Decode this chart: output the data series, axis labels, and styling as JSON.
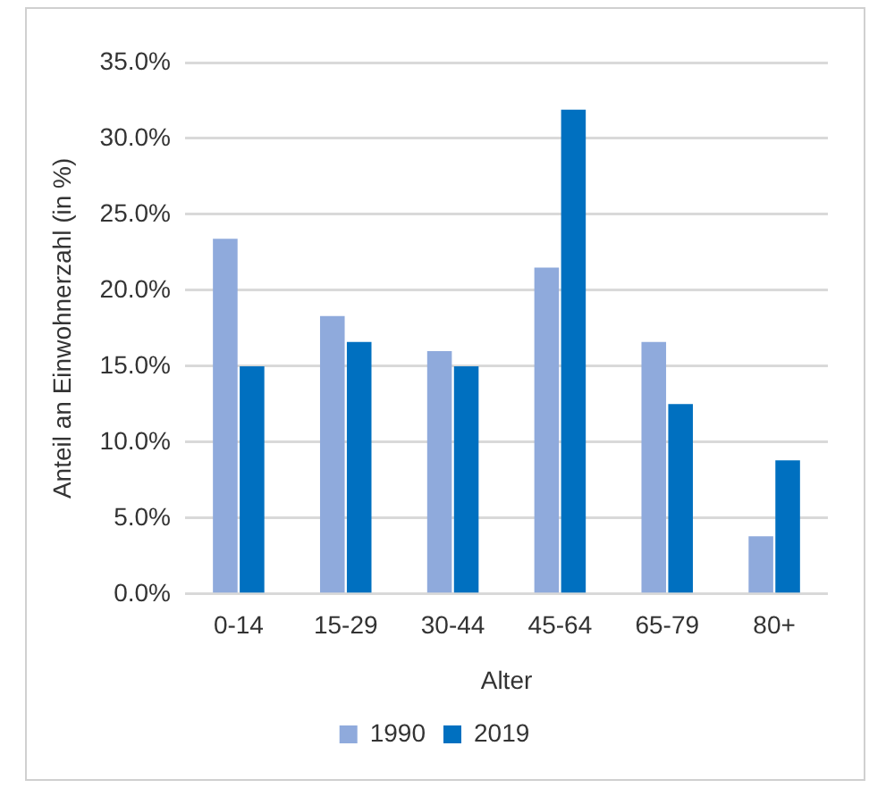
{
  "chart_data": {
    "type": "bar",
    "xlabel": "Alter",
    "ylabel": "Anteil an Einwohnerzahl (in %)",
    "categories": [
      "0-14",
      "15-29",
      "30-44",
      "45-64",
      "65-79",
      "80+"
    ],
    "series": [
      {
        "name": "1990",
        "color": "#8faadc",
        "values": [
          23.4,
          18.3,
          16.0,
          21.5,
          16.6,
          3.8
        ]
      },
      {
        "name": "2019",
        "color": "#0070c0",
        "values": [
          15.0,
          16.6,
          15.0,
          31.9,
          12.5,
          8.8
        ]
      }
    ],
    "ylim": [
      0,
      35
    ],
    "yticks": [
      {
        "value": 0,
        "label": "0.0%"
      },
      {
        "value": 5,
        "label": "5.0%"
      },
      {
        "value": 10,
        "label": "10.0%"
      },
      {
        "value": 15,
        "label": "15.0%"
      },
      {
        "value": 20,
        "label": "20.0%"
      },
      {
        "value": 25,
        "label": "25.0%"
      },
      {
        "value": 30,
        "label": "30.0%"
      },
      {
        "value": 35,
        "label": "35.0%"
      }
    ],
    "grid": "y",
    "legend": "bottom"
  }
}
